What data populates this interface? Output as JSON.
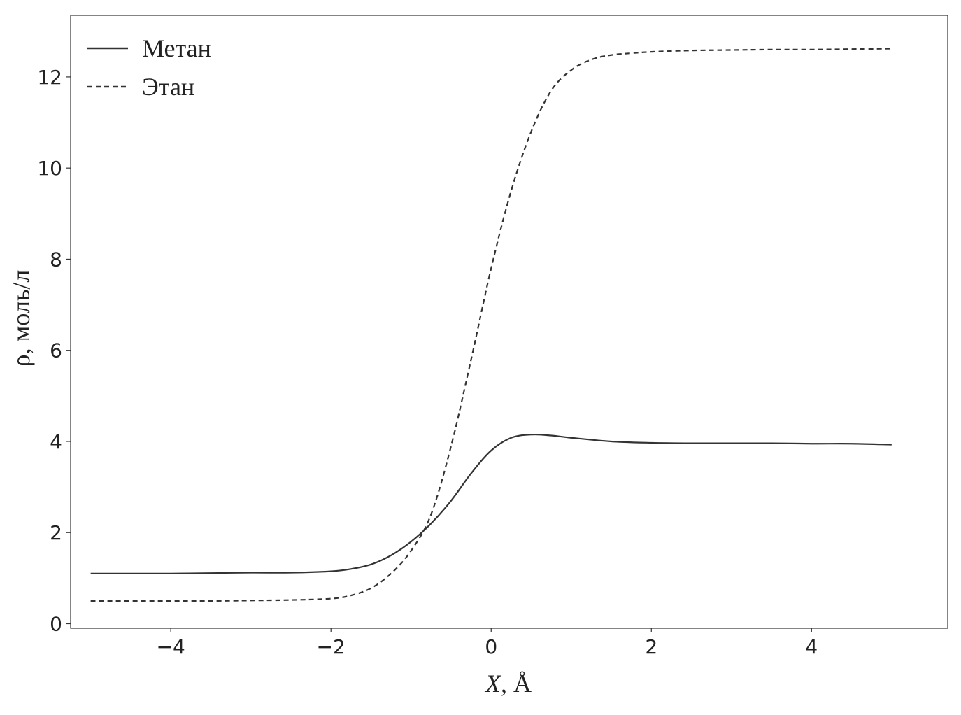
{
  "chart_data": {
    "type": "line",
    "xlabel": "X, Å",
    "xlabel_italic_part": "X",
    "xlabel_rest": ", Å",
    "ylabel": "ρ, моль/л",
    "xlim": [
      -5.25,
      5.7
    ],
    "ylim": [
      -0.1,
      13.35
    ],
    "xticks": [
      -4,
      -2,
      0,
      2,
      4
    ],
    "xtick_labels": [
      "−4",
      "−2",
      "0",
      "2",
      "4"
    ],
    "yticks": [
      0,
      2,
      4,
      6,
      8,
      10,
      12
    ],
    "ytick_labels": [
      "0",
      "2",
      "4",
      "6",
      "8",
      "10",
      "12"
    ],
    "grid": false,
    "legend_position": "top-left",
    "series": [
      {
        "name": "Метан",
        "style": "solid",
        "color": "#333333",
        "x": [
          -5,
          -4.5,
          -4,
          -3.5,
          -3,
          -2.5,
          -2,
          -1.75,
          -1.5,
          -1.25,
          -1,
          -0.75,
          -0.5,
          -0.25,
          0,
          0.25,
          0.5,
          0.75,
          1,
          1.5,
          2,
          2.5,
          3,
          3.5,
          4,
          4.5,
          5
        ],
        "y": [
          1.1,
          1.1,
          1.1,
          1.11,
          1.12,
          1.12,
          1.15,
          1.2,
          1.3,
          1.5,
          1.8,
          2.2,
          2.7,
          3.3,
          3.8,
          4.08,
          4.15,
          4.13,
          4.08,
          4.0,
          3.97,
          3.96,
          3.96,
          3.96,
          3.95,
          3.95,
          3.93
        ]
      },
      {
        "name": "Этан",
        "style": "dashed",
        "color": "#333333",
        "x": [
          -5,
          -4.5,
          -4,
          -3.5,
          -3,
          -2.5,
          -2,
          -1.75,
          -1.5,
          -1.25,
          -1,
          -0.75,
          -0.5,
          -0.25,
          0,
          0.25,
          0.5,
          0.75,
          1,
          1.25,
          1.5,
          1.75,
          2,
          2.5,
          3,
          3.5,
          4,
          4.5,
          5
        ],
        "y": [
          0.5,
          0.5,
          0.5,
          0.5,
          0.51,
          0.52,
          0.55,
          0.62,
          0.78,
          1.1,
          1.6,
          2.4,
          3.9,
          5.8,
          7.8,
          9.5,
          10.8,
          11.7,
          12.15,
          12.38,
          12.48,
          12.52,
          12.55,
          12.58,
          12.59,
          12.6,
          12.6,
          12.61,
          12.62
        ]
      }
    ]
  }
}
